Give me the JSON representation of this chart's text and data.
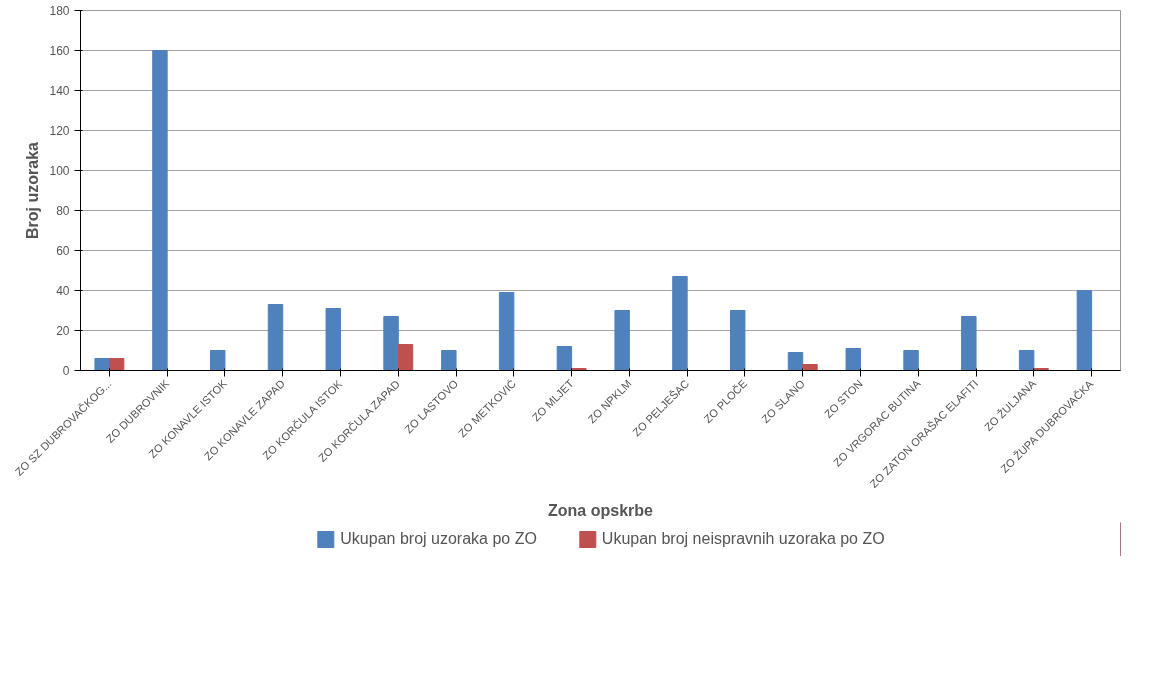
{
  "chart_data": {
    "type": "bar",
    "xlabel": "Zona opskrbe",
    "ylabel": "Broj uzoraka",
    "categories": [
      "ZO SZ DUBROVAČKOG...",
      "ZO DUBROVNIK",
      "ZO KONAVLE ISTOK",
      "ZO KONAVLE ZAPAD",
      "ZO KORČULA ISTOK",
      "ZO KORČULA ZAPAD",
      "ZO LASTOVO",
      "ZO METKOVIĆ",
      "ZO MLJET",
      "ZO NPKLM",
      "ZO PELJEŠAC",
      "ZO PLOČE",
      "ZO SLANO",
      "ZO STON",
      "ZO VRGORAC BUTINA",
      "ZO ZATON ORAŠAC ELAFITI",
      "ZO ŽULJANA",
      "ZO ŽUPA DUBROVAČKA"
    ],
    "series": [
      {
        "name": "Ukupan broj uzoraka po ZO",
        "color": "#4f81bd",
        "values": [
          6,
          160,
          10,
          33,
          31,
          27,
          10,
          39,
          12,
          30,
          47,
          30,
          9,
          11,
          10,
          27,
          10,
          40
        ]
      },
      {
        "name": "Ukupan broj neispravnih uzoraka po ZO",
        "color": "#c0504d",
        "values": [
          6,
          0,
          0,
          0,
          0,
          13,
          0,
          0,
          1,
          0,
          0,
          0,
          3,
          0,
          0,
          0,
          1,
          0
        ]
      }
    ],
    "ylim": [
      0,
      180
    ],
    "yticks": [
      0,
      20,
      40,
      60,
      80,
      100,
      120,
      140,
      160,
      180
    ],
    "grid": "y",
    "legend": "bottom"
  }
}
